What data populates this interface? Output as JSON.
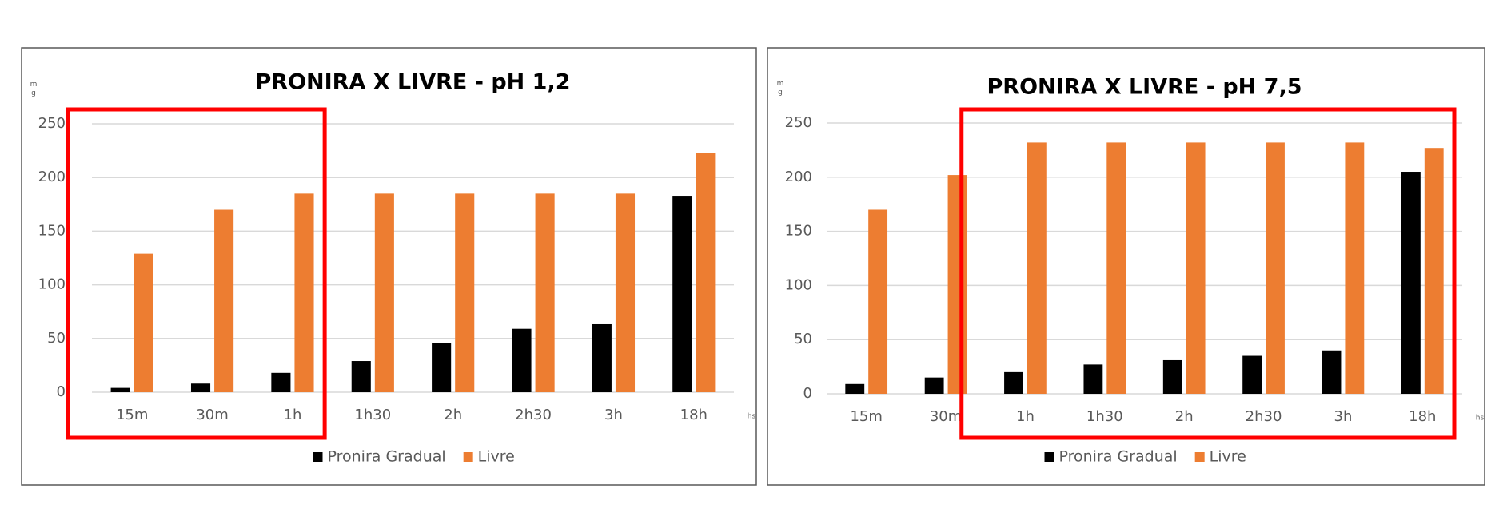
{
  "chart_data": [
    {
      "type": "bar",
      "title": "PRONIRA X LIVRE - pH 1,2",
      "y_label": "mg",
      "x_label": "hs",
      "categories": [
        "15m",
        "30m",
        "1h",
        "1h30",
        "2h",
        "2h30",
        "3h",
        "18h"
      ],
      "series": [
        {
          "name": "Pronira Gradual",
          "color": "#000000",
          "values": [
            4,
            8,
            18,
            29,
            46,
            59,
            64,
            183
          ]
        },
        {
          "name": "Livre",
          "color": "#ed7d31",
          "values": [
            129,
            170,
            185,
            185,
            185,
            185,
            185,
            223
          ]
        }
      ],
      "ylim": [
        0,
        250
      ],
      "yticks": [
        0,
        50,
        100,
        150,
        200,
        250
      ],
      "grid": true,
      "legend": "bottom"
    },
    {
      "type": "bar",
      "title": "PRONIRA X LIVRE - pH 7,5",
      "y_label": "mg",
      "x_label": "hs",
      "categories": [
        "15m",
        "30m",
        "1h",
        "1h30",
        "2h",
        "2h30",
        "3h",
        "18h"
      ],
      "series": [
        {
          "name": "Pronira Gradual",
          "color": "#000000",
          "values": [
            9,
            15,
            20,
            27,
            31,
            35,
            40,
            205
          ]
        },
        {
          "name": "Livre",
          "color": "#ed7d31",
          "values": [
            170,
            202,
            232,
            232,
            232,
            232,
            232,
            227
          ]
        }
      ],
      "ylim": [
        0,
        250
      ],
      "yticks": [
        0,
        50,
        100,
        150,
        200,
        250
      ],
      "grid": true,
      "legend": "bottom"
    }
  ]
}
